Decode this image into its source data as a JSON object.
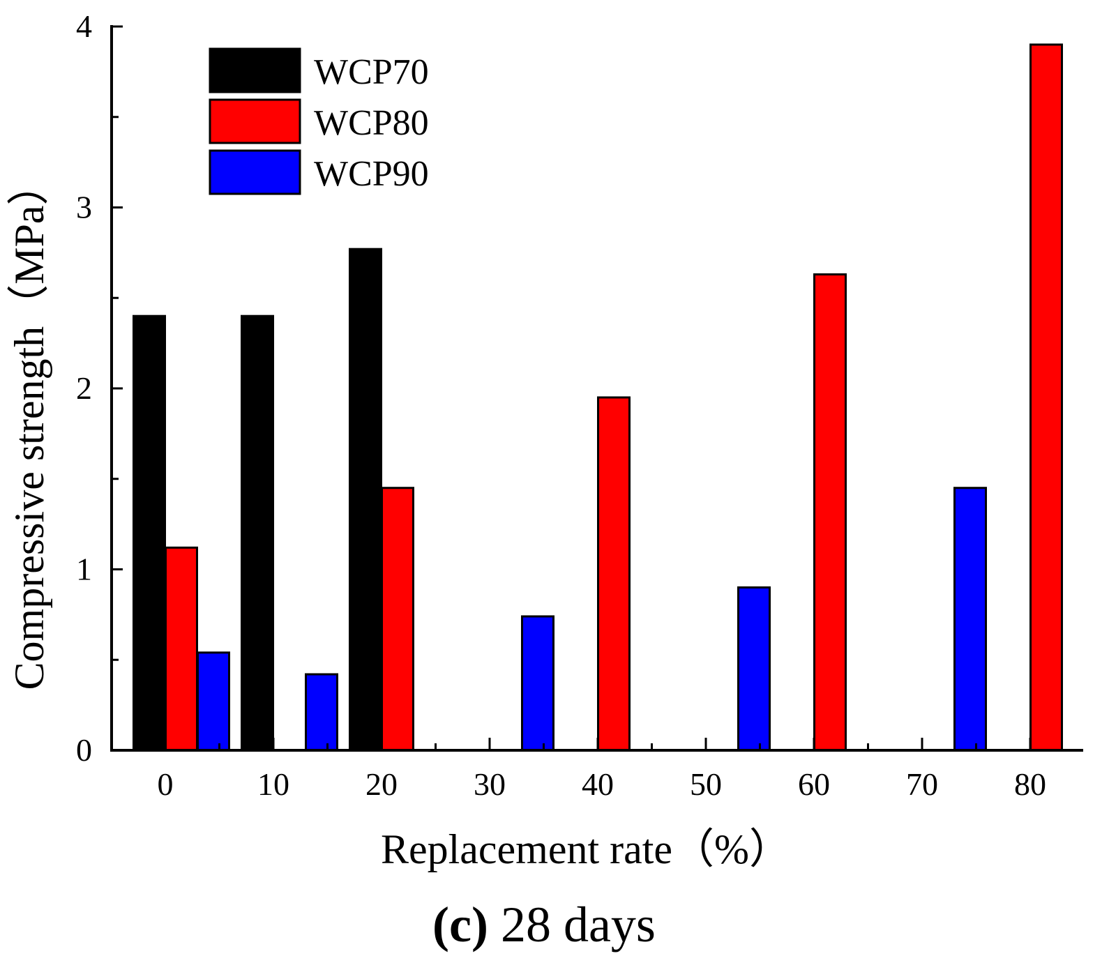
{
  "chart_data": {
    "type": "bar",
    "title": "",
    "xlabel": "Replacement rate（%）",
    "ylabel": "Compressive strength（MPa）",
    "categories": [
      "0",
      "10",
      "20",
      "30",
      "40",
      "50",
      "60",
      "70",
      "80"
    ],
    "ylim": [
      0,
      4
    ],
    "yticks": [
      "0",
      "1",
      "2",
      "3",
      "4"
    ],
    "series": [
      {
        "name": "WCP70",
        "color": "#000000",
        "values": [
          2.4,
          2.4,
          2.77,
          null,
          null,
          null,
          null,
          null,
          null
        ]
      },
      {
        "name": "WCP80",
        "color": "#ff0000",
        "values": [
          1.12,
          null,
          1.45,
          null,
          1.95,
          null,
          2.63,
          null,
          3.9
        ]
      },
      {
        "name": "WCP90",
        "color": "#0000ff",
        "values": [
          0.54,
          0.42,
          null,
          0.74,
          null,
          0.9,
          null,
          1.45,
          null
        ]
      }
    ],
    "legend_position": "top-left",
    "grid": false
  },
  "caption": {
    "label": "(c)",
    "text": "28 days"
  }
}
